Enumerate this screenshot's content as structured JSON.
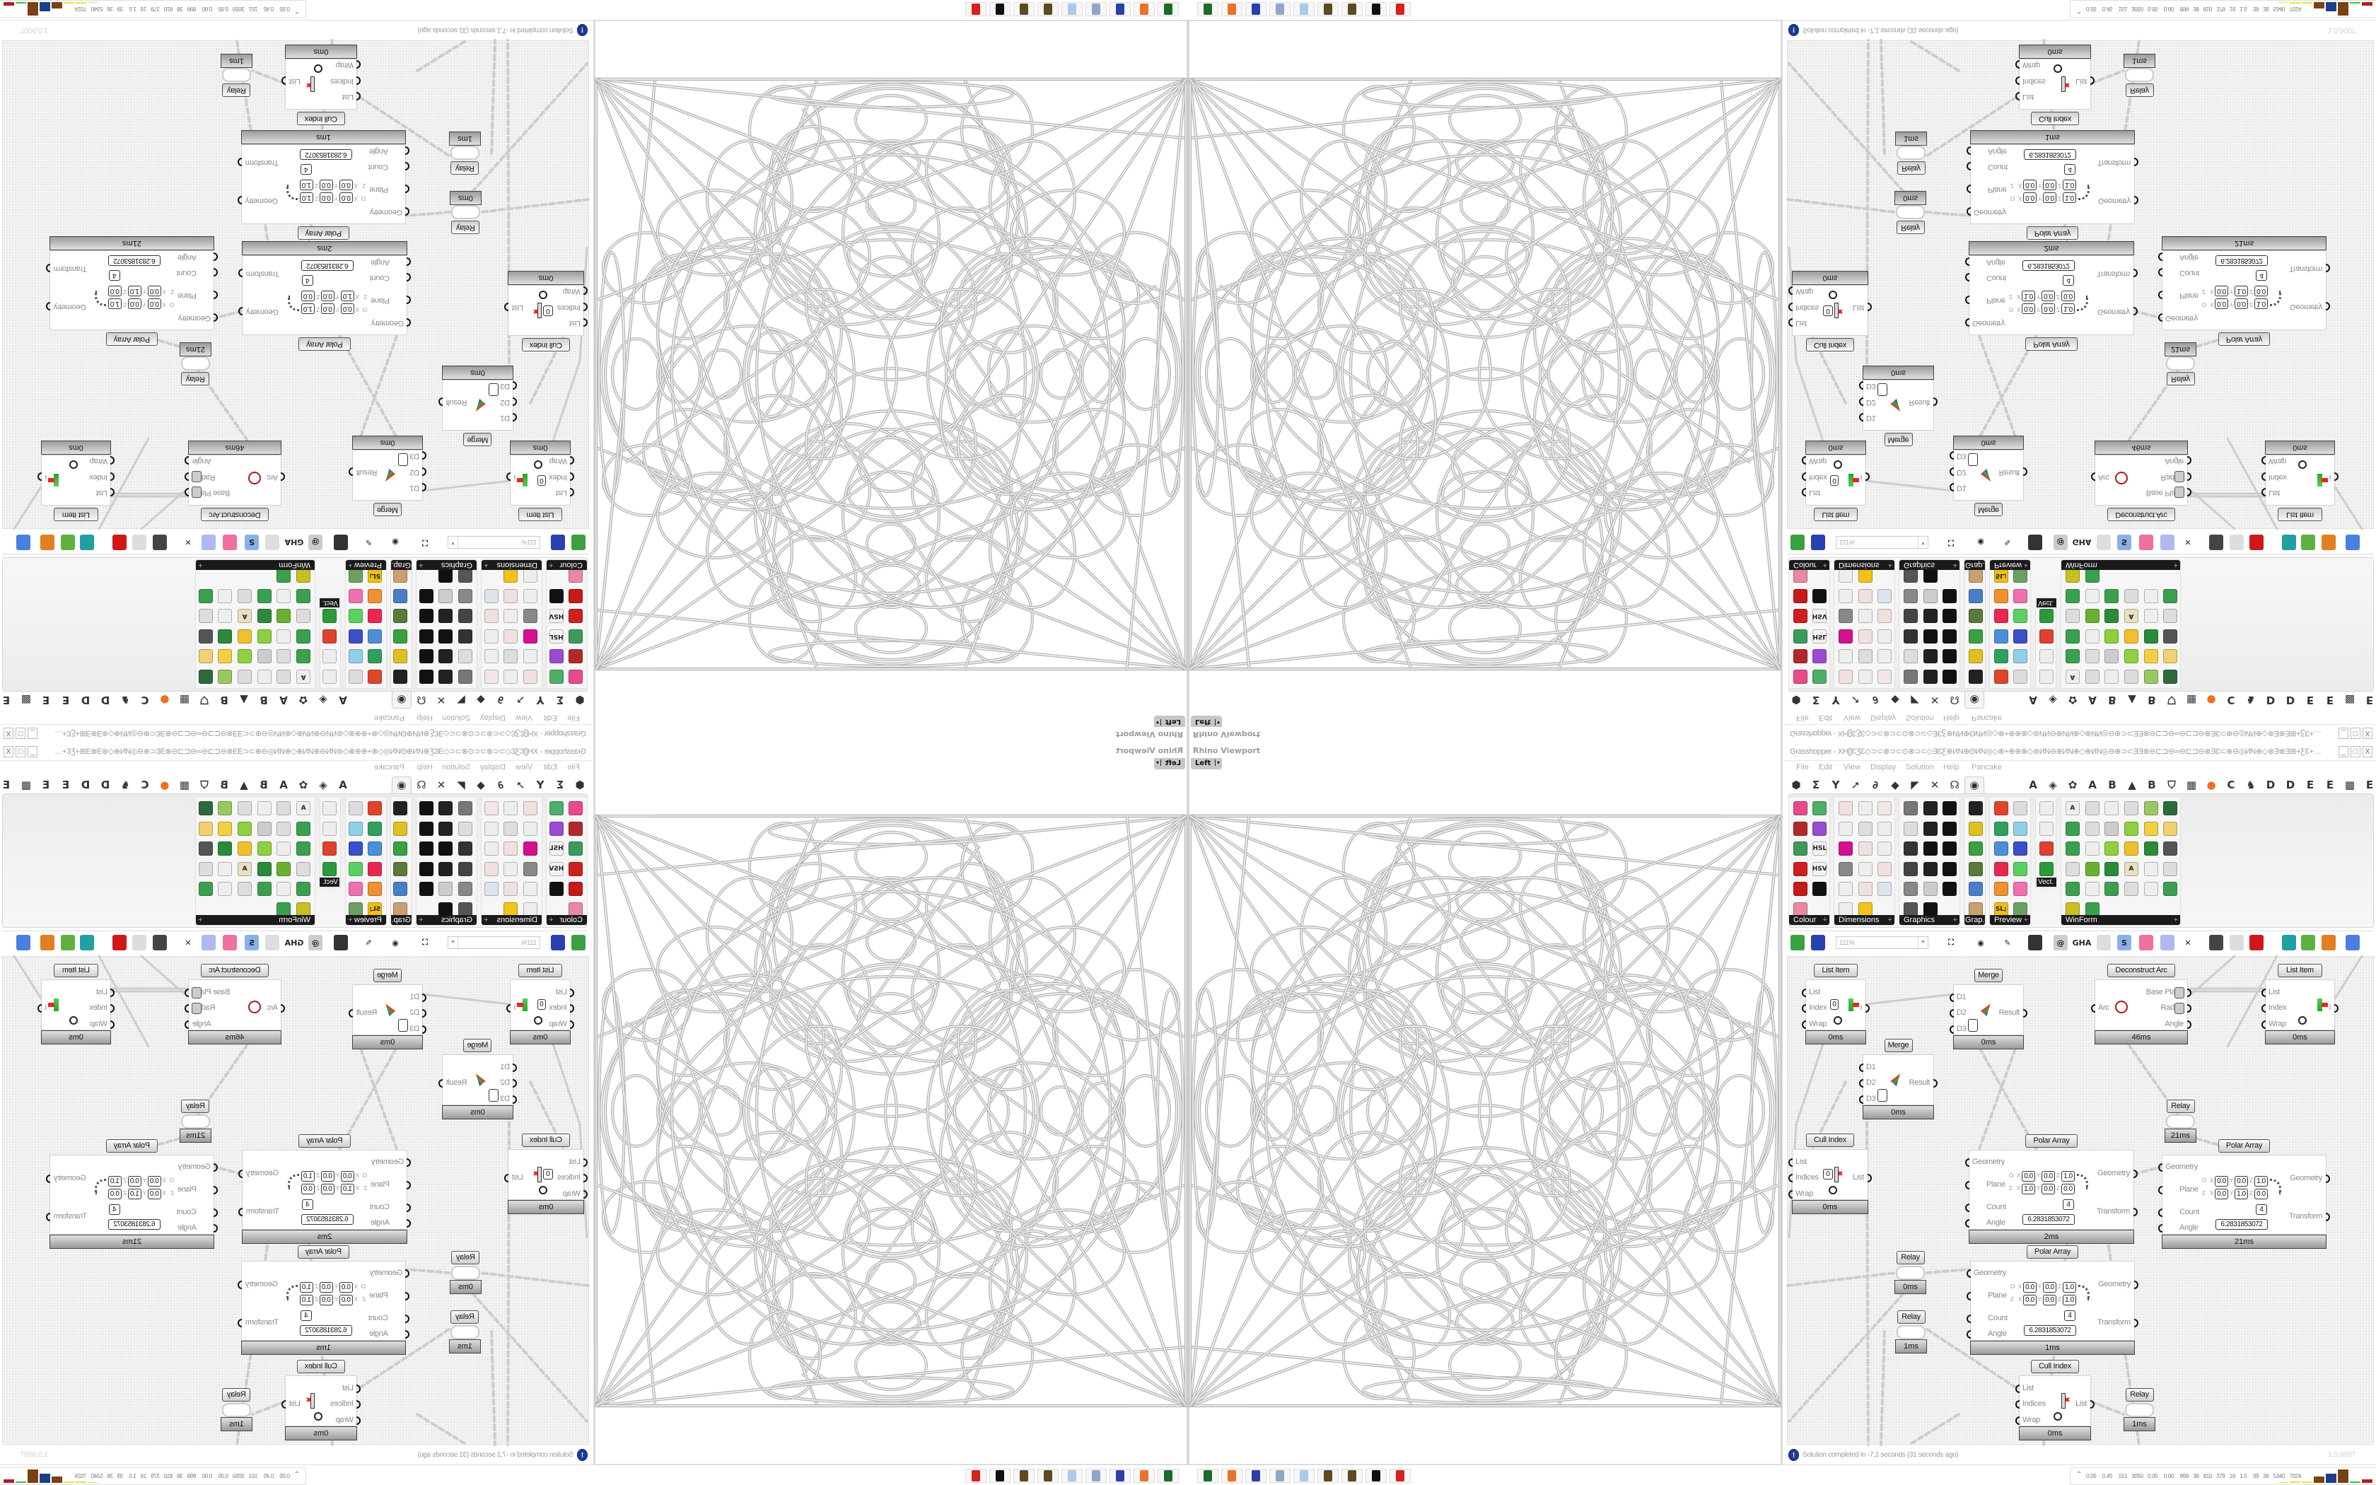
{
  "viewport": {
    "title": "Rhino Viewport",
    "view_name": "Left",
    "view_caret": "▾"
  },
  "taskbar": {
    "icons": [
      {
        "name": "network-app",
        "color": "#1d6b2a"
      },
      {
        "name": "firefox",
        "color": "#e8742a"
      },
      {
        "name": "floppy-64",
        "color": "#2b3fa8"
      },
      {
        "name": "document-scroll",
        "color": "#8fa6c7"
      },
      {
        "name": "notepad",
        "color": "#a9c9e6"
      },
      {
        "name": "chestnut",
        "color": "#5b4a22"
      },
      {
        "name": "chestnut-2",
        "color": "#5b4a22"
      },
      {
        "name": "rhino-logo",
        "color": "#111111"
      },
      {
        "name": "red-app",
        "color": "#d8201c"
      }
    ]
  },
  "grasshopper": {
    "title": "Grasshopper - XH[]ƐƷƐ◇⊃⊂⊗⊃⊂⊙⊗⊃⊂◇ƎƐƸ⊕ИN⊕ΘИN◎◇⊗+⊕⊕⊗◇⊚ИN⊖⊕ИN⊕◇⊕ИN◎⊖⊕⊃⊂ƎƎ⊗⊖⊏⊐⊖∞⊖⊏⊐⊖⊗ƎƐ⊂⊕⊖◎ИN⊕◇⊛Ǝ⊗Ǝ⊞+ƸƐ+⊞Ǝ⊗Ǝ⊛◇⊕⊗⊏⊐Ǝ⊞⊕⊕⊃⊂...",
    "window_buttons": {
      "minimize": "_",
      "maximize": "□",
      "close": "X"
    },
    "menu": [
      "File",
      "Edit",
      "View",
      "Display",
      "Solution",
      "Help",
      "Pancake"
    ],
    "tabs": [
      {
        "name": "params",
        "glyph": "⬢"
      },
      {
        "name": "maths",
        "glyph": "Σ"
      },
      {
        "name": "sets",
        "glyph": "Y"
      },
      {
        "name": "vector",
        "glyph": "➚"
      },
      {
        "name": "curve",
        "glyph": "∂"
      },
      {
        "name": "surface",
        "glyph": "◆"
      },
      {
        "name": "mesh",
        "glyph": "◤"
      },
      {
        "name": "intersect",
        "glyph": "✕"
      },
      {
        "name": "transform",
        "glyph": "☊"
      },
      {
        "name": "display",
        "glyph": "◉",
        "active": true
      },
      {
        "name": "plugin-a",
        "glyph": "A"
      },
      {
        "name": "plugin-leaf",
        "glyph": "◈"
      },
      {
        "name": "plugin-gear",
        "glyph": "✿"
      },
      {
        "name": "plugin-a2",
        "glyph": "A"
      },
      {
        "name": "plugin-b",
        "glyph": "B"
      },
      {
        "name": "plugin-mountain",
        "glyph": "▲"
      },
      {
        "name": "plugin-b2",
        "glyph": "B"
      },
      {
        "name": "plugin-shield",
        "glyph": "⛉"
      },
      {
        "name": "plugin-grid",
        "glyph": "▦"
      },
      {
        "name": "plugin-orange",
        "glyph": "●"
      },
      {
        "name": "plugin-c",
        "glyph": "C"
      },
      {
        "name": "plugin-bird",
        "glyph": "♞"
      },
      {
        "name": "plugin-d",
        "glyph": "D"
      },
      {
        "name": "plugin-d2",
        "glyph": "D"
      },
      {
        "name": "plugin-e",
        "glyph": "E"
      },
      {
        "name": "plugin-e2",
        "glyph": "E"
      },
      {
        "name": "plugin-chip",
        "glyph": "▩"
      },
      {
        "name": "plugin-e3",
        "glyph": "E"
      }
    ],
    "ribbon_panels": [
      {
        "label": "Colour",
        "cols": 2,
        "icons": [
          {
            "name": "colour-wheel",
            "color": "#e84a8a"
          },
          {
            "name": "gradient",
            "color": "#4fae6a"
          },
          {
            "name": "colour-cube",
            "color": "#b3282a"
          },
          {
            "name": "colour-triangle",
            "color": "#9a4bd1"
          },
          {
            "name": "green-cube",
            "color": "#3d9a5a"
          },
          {
            "name": "hsl",
            "glyph": "HSL",
            "color": "#f2f2f2"
          },
          {
            "name": "red-sphere",
            "color": "#d0201e"
          },
          {
            "name": "hsv",
            "glyph": "HSV",
            "color": "#f2f2f2"
          },
          {
            "name": "red-sphere-2",
            "color": "#c51a1a"
          },
          {
            "name": "prism",
            "color": "#111111"
          },
          {
            "name": "gradient-square",
            "color": "#e98aa2"
          }
        ]
      },
      {
        "label": "Dimensions",
        "cols": 3,
        "icons": [
          {
            "name": "tag-delete",
            "color": "#f0e0e0"
          },
          {
            "name": "linear-dimension",
            "color": "#eeeeee"
          },
          {
            "name": "angular-dimension",
            "color": "#f2e6e6"
          },
          {
            "name": "tag",
            "color": "#eeeeee"
          },
          {
            "name": "line-dimension",
            "color": "#dddddd"
          },
          {
            "name": "ortho-dimension",
            "color": "#eeeeee"
          },
          {
            "name": "magenta-swatch",
            "color": "#d4108f"
          },
          {
            "name": "multi-dimension",
            "color": "#f0e0e0"
          },
          {
            "name": "serial-dimension",
            "color": "#eeeeee"
          },
          {
            "name": "grid-dimension",
            "color": "#888888"
          },
          {
            "name": "angle-dimension",
            "color": "#eeeeee"
          },
          {
            "name": "radial-dimension",
            "color": "#f2e0e0"
          },
          {
            "name": "arc-dimension",
            "color": "#eeeeee"
          },
          {
            "name": "arc-dimension-2",
            "color": "#f0e0e0"
          },
          {
            "name": "leader",
            "color": "#dde4ee"
          },
          {
            "name": "line-dimension-2",
            "color": "#eeeeee"
          },
          {
            "name": "warning-triangle",
            "color": "#f2c318"
          }
        ]
      },
      {
        "label": "Graphics",
        "cols": 3,
        "icons": [
          {
            "name": "grey-circle",
            "color": "#777777"
          },
          {
            "name": "font-t",
            "color": "#222222"
          },
          {
            "name": "eye-circle",
            "color": "#111111"
          },
          {
            "name": "dotted-circle",
            "color": "#dddddd"
          },
          {
            "name": "t-circle",
            "color": "#222222"
          },
          {
            "name": "rounded-square",
            "color": "#111111"
          },
          {
            "name": "blur-circle",
            "color": "#333333"
          },
          {
            "name": "list-circle",
            "color": "#111111"
          },
          {
            "name": "asterisk-circle",
            "color": "#111111"
          },
          {
            "name": "ring",
            "color": "#444444"
          },
          {
            "name": "link-circle",
            "color": "#222222"
          },
          {
            "name": "save-image",
            "color": "#111111"
          },
          {
            "name": "grey-sphere",
            "color": "#888888"
          },
          {
            "name": "dotted-ring",
            "color": "#cccccc"
          },
          {
            "name": "save-snow",
            "color": "#111111"
          },
          {
            "name": "dark-sphere",
            "color": "#555555"
          },
          {
            "name": "mountain-circle",
            "color": "#111111"
          }
        ]
      },
      {
        "label": "Grap...",
        "cols": 1,
        "icons": [
          {
            "name": "histogram",
            "color": "#222222"
          },
          {
            "name": "gradient-legend",
            "color": "#e0c020"
          },
          {
            "name": "pie-chart",
            "color": "#3aa040"
          },
          {
            "name": "line-graph",
            "color": "#5a7a3a"
          },
          {
            "name": "blue-frames",
            "color": "#4a7fc8"
          },
          {
            "name": "area-graph",
            "color": "#c9a070"
          }
        ]
      },
      {
        "label": "Preview",
        "cols": 2,
        "icons": [
          {
            "name": "red-egg",
            "color": "#e0452a"
          },
          {
            "name": "camera",
            "color": "#dddddd"
          },
          {
            "name": "green-sphere",
            "color": "#2fa060"
          },
          {
            "name": "trees-image",
            "color": "#8fd0e8"
          },
          {
            "name": "blue-spots",
            "color": "#4a8fd8"
          },
          {
            "name": "blue-heart",
            "color": "#3a4fc8"
          },
          {
            "name": "red-spots",
            "color": "#e82850"
          },
          {
            "name": "green-heart",
            "color": "#5ad060"
          },
          {
            "name": "orange-gradient",
            "color": "#f09030"
          },
          {
            "name": "hearts",
            "color": "#f070b0"
          },
          {
            "name": "sl-script",
            "glyph": "SL;",
            "color": "#f0c010"
          },
          {
            "name": "tree-image",
            "color": "#6aa060"
          }
        ]
      },
      {
        "label": "Vect.",
        "cols": 1,
        "inline_label": true,
        "icons": [
          {
            "name": "sort-numbers",
            "color": "#eeeeee"
          },
          {
            "name": "path",
            "color": "#eeeeee"
          },
          {
            "name": "red-arrows",
            "color": "#e04030"
          },
          {
            "name": "green-arrows",
            "color": "#2a9a3a"
          }
        ]
      },
      {
        "label": "WinForm",
        "cols": 6,
        "icons": [
          {
            "name": "font-a",
            "glyph": "A",
            "color": "#eeeeee"
          },
          {
            "name": "list-control",
            "color": "#dddddd"
          },
          {
            "name": "text-lines",
            "color": "#eeeeee"
          },
          {
            "name": "label-control",
            "color": "#dddddd"
          },
          {
            "name": "chart-control",
            "color": "#9ac860"
          },
          {
            "name": "grid-control",
            "color": "#2d6a3a"
          },
          {
            "name": "hatch",
            "color": "#3aa050"
          },
          {
            "name": "slider-dots",
            "color": "#dddddd"
          },
          {
            "name": "slider",
            "color": "#cccccc"
          },
          {
            "name": "green-grid",
            "color": "#8ed040"
          },
          {
            "name": "pie-bubble",
            "color": "#f0d040"
          },
          {
            "name": "layout",
            "color": "#f0d070"
          },
          {
            "name": "checkbox",
            "color": "#3aa050"
          },
          {
            "name": "text-box",
            "color": "#eeeeee"
          },
          {
            "name": "picture",
            "color": "#8ed040"
          },
          {
            "name": "pie",
            "color": "#f0c030"
          },
          {
            "name": "person",
            "color": "#2a8a3a"
          },
          {
            "name": "toolbar-control",
            "color": "#555555"
          },
          {
            "name": "number-box",
            "color": "#dddddd"
          },
          {
            "name": "3d-box",
            "color": "#6ab030"
          },
          {
            "name": "media",
            "color": "#2a8a3a"
          },
          {
            "name": "font-a-plus",
            "glyph": "A",
            "color": "#e8e0c0"
          },
          {
            "name": "ok-button",
            "color": "#eeeeee"
          },
          {
            "name": "slider-2",
            "color": "#dddddd"
          },
          {
            "name": "vertical-bar",
            "color": "#3aa050"
          },
          {
            "name": "list-2",
            "color": "#eeeeee"
          },
          {
            "name": "green-window",
            "color": "#3aa050"
          },
          {
            "name": "calendar",
            "color": "#dddddd"
          },
          {
            "name": "vertical-slider",
            "color": "#eeeeee"
          },
          {
            "name": "progress-bar",
            "color": "#3aa050"
          },
          {
            "name": "bar-chart",
            "color": "#c8c020"
          },
          {
            "name": "export",
            "color": "#3aa050"
          }
        ]
      }
    ],
    "toolbar": {
      "zoom_value": "111%",
      "icons": [
        {
          "name": "new-document",
          "color": "#3aa040"
        },
        {
          "name": "save",
          "color": "#2a3fb0"
        },
        {
          "name": "zoom-extents",
          "glyph": "⛶",
          "color": "#ffffff"
        },
        {
          "name": "preview-eye",
          "glyph": "◉",
          "color": "#ffffff"
        },
        {
          "name": "sketch",
          "glyph": "✎",
          "color": "#ffffff"
        },
        {
          "name": "bug",
          "color": "#333333"
        },
        {
          "name": "email",
          "glyph": "@",
          "color": "#cccccc"
        },
        {
          "name": "gha-plugin",
          "glyph": "GHA",
          "color": "#ffffff"
        },
        {
          "name": "image-frame",
          "color": "#dddddd"
        },
        {
          "name": "search",
          "glyph": "S",
          "color": "#8ab0e8"
        },
        {
          "name": "help-box",
          "color": "#f070a0"
        },
        {
          "name": "bulb",
          "color": "#b0b8f0"
        },
        {
          "name": "crossed-wires",
          "glyph": "✕",
          "color": "#ffffff"
        },
        {
          "name": "dark-shape",
          "color": "#444444"
        },
        {
          "name": "chain",
          "color": "#dddddd"
        },
        {
          "name": "red-cube",
          "color": "#d01818"
        },
        {
          "name": "teal-surface",
          "color": "#20a0a0"
        },
        {
          "name": "green-surface",
          "color": "#60b040"
        },
        {
          "name": "half-sphere",
          "color": "#e08020"
        },
        {
          "name": "blue-sphere",
          "color": "#4a80e0"
        }
      ]
    },
    "status": {
      "icon": "info-icon",
      "text": "Solution completed in -7,1 seconds (31 seconds ago)",
      "version": "1,0,0007"
    }
  },
  "canvas": {
    "nodes": [
      {
        "type": "listitem",
        "title": "List Item",
        "inputs": [
          "List",
          "Index",
          "Wrap"
        ],
        "outputs": [
          "i"
        ],
        "index_value": "0",
        "time": "0ms"
      },
      {
        "type": "merge",
        "title": "Merge",
        "inputs": [
          "D1",
          "D2",
          "D3"
        ],
        "outputs": [
          "Result"
        ],
        "time": "0ms"
      },
      {
        "type": "merge",
        "title": "Merge",
        "inputs": [
          "D1",
          "D2",
          "D3"
        ],
        "outputs": [
          "Result"
        ],
        "time": "0ms"
      },
      {
        "type": "deconarc",
        "title": "Deconstruct Arc",
        "inputs": [
          "Arc"
        ],
        "outputs": [
          "Base Plane",
          "Radius",
          "Angle"
        ],
        "time": "46ms"
      },
      {
        "type": "listitem",
        "title": "List Item",
        "inputs": [
          "List",
          "Index",
          "Wrap"
        ],
        "outputs": [
          "i"
        ],
        "time": "0ms"
      },
      {
        "type": "relay",
        "title": "Relay",
        "time": "21ms"
      },
      {
        "type": "cullindex",
        "title": "Cull Index",
        "inputs": [
          "List",
          "Indices",
          "Wrap"
        ],
        "outputs": [
          "List"
        ],
        "index_value": "0",
        "time": "0ms"
      },
      {
        "type": "polararray",
        "title": "Polar Array",
        "inputs": [
          "Geometry",
          "Plane",
          "Count",
          "Angle"
        ],
        "outputs": [
          "Geometry",
          "Transform"
        ],
        "plane": {
          "row1": {
            "label": "O",
            "x": "0.0",
            "y": "0.0",
            "z": "1.0"
          },
          "row2": {
            "label": "Z",
            "x": "1.0",
            "y": "0.0",
            "z": "0.0"
          }
        },
        "count": "4",
        "angle": "6.2831853072",
        "time": "2ms"
      },
      {
        "type": "polararray",
        "title": "Polar Array",
        "inputs": [
          "Geometry",
          "Plane",
          "Count",
          "Angle"
        ],
        "outputs": [
          "Geometry",
          "Transform"
        ],
        "plane": {
          "row1": {
            "label": "O",
            "x": "0.0",
            "y": "0.0",
            "z": "1.0"
          },
          "row2": {
            "label": "Z",
            "x": "0.0",
            "y": "1.0",
            "z": "0.0"
          }
        },
        "count": "4",
        "angle": "6.2831853072",
        "time": "21ms"
      },
      {
        "type": "polararray",
        "title": "Polar Array",
        "inputs": [
          "Geometry",
          "Plane",
          "Count",
          "Angle"
        ],
        "outputs": [
          "Geometry",
          "Transform"
        ],
        "plane": {
          "row1": {
            "label": "O",
            "x": "0.0",
            "y": "0.0",
            "z": "1.0"
          },
          "row2": {
            "label": "Z",
            "x": "0.0",
            "y": "0.0",
            "z": "1.0"
          }
        },
        "count": "4",
        "angle": "6.2831853072",
        "time": "1ms"
      },
      {
        "type": "relay",
        "title": "Relay",
        "time": "0ms"
      },
      {
        "type": "relay",
        "title": "Relay",
        "time": "1ms"
      },
      {
        "type": "cullindex",
        "title": "Cull Index",
        "inputs": [
          "List",
          "Indices",
          "Wrap"
        ],
        "outputs": [
          "List"
        ],
        "time": "0ms"
      },
      {
        "type": "relay",
        "title": "Relay",
        "time": "1ms"
      }
    ]
  },
  "perf_meter": {
    "values": [
      "0.05",
      "0.45",
      "151",
      "3050",
      "0.05",
      "0.00",
      "899",
      "38",
      "810",
      "379",
      "16",
      "1.5",
      "39",
      "36",
      "5340",
      "7024"
    ],
    "bars": [
      {
        "color": "#e8e040",
        "level": 0.05
      },
      {
        "color": "#e8e040",
        "level": 0.08
      },
      {
        "color": "#e8e040",
        "level": 0.08
      },
      {
        "color": "#7a4210",
        "level": 0.45
      },
      {
        "color": "#1c3f8a",
        "level": 0.7
      },
      {
        "color": "#7a4210",
        "level": 1.0
      },
      {
        "color": "#40c040",
        "level": 0.08
      },
      {
        "color": "#b02020",
        "level": 0.25
      }
    ]
  }
}
